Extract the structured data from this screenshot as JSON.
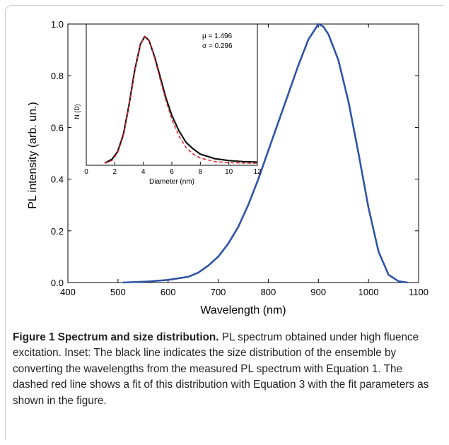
{
  "chart_data": [
    {
      "type": "line",
      "xlabel": "Wavelength (nm)",
      "ylabel": "PL intensity (arb. un.)",
      "xlim": [
        400,
        1100
      ],
      "ylim": [
        0,
        1.0
      ],
      "xticks": [
        "400",
        "500",
        "600",
        "700",
        "800",
        "900",
        "1000",
        "1100"
      ],
      "yticks": [
        "0.0",
        "0.2",
        "0.4",
        "0.6",
        "0.8",
        "1.0"
      ],
      "series": [
        {
          "color": "#2e54a6",
          "x": [
            510,
            560,
            600,
            640,
            660,
            680,
            700,
            720,
            740,
            760,
            780,
            800,
            820,
            840,
            860,
            880,
            900,
            910,
            920,
            940,
            960,
            980,
            1000,
            1020,
            1040,
            1060,
            1078
          ],
          "y": [
            0.0,
            0.004,
            0.01,
            0.022,
            0.038,
            0.065,
            0.1,
            0.15,
            0.215,
            0.3,
            0.4,
            0.51,
            0.62,
            0.73,
            0.84,
            0.94,
            1.0,
            0.99,
            0.96,
            0.86,
            0.7,
            0.5,
            0.29,
            0.12,
            0.03,
            0.005,
            0.0
          ]
        }
      ]
    },
    {
      "type": "line",
      "xlabel": "Diameter (nm)",
      "ylabel": "N (D)",
      "xlim": [
        0,
        12
      ],
      "xticks": [
        "0",
        "2",
        "4",
        "6",
        "8",
        "10",
        "12"
      ],
      "annotations": [
        "μ = 1.496",
        "σ = 0.296"
      ],
      "series": [
        {
          "color": "#111111",
          "style": "solid",
          "x": [
            1.3,
            1.8,
            2.2,
            2.6,
            3.0,
            3.4,
            3.8,
            4.1,
            4.4,
            4.8,
            5.2,
            5.6,
            6.0,
            6.5,
            7.0,
            7.5,
            8.0,
            9.0,
            10.0,
            11.0,
            12.0
          ],
          "y": [
            0.0,
            0.03,
            0.09,
            0.22,
            0.45,
            0.72,
            0.92,
            0.98,
            0.95,
            0.82,
            0.66,
            0.5,
            0.37,
            0.25,
            0.16,
            0.11,
            0.07,
            0.035,
            0.02,
            0.012,
            0.008
          ]
        },
        {
          "color": "#e0252b",
          "style": "dashed",
          "x": [
            1.3,
            1.8,
            2.2,
            2.6,
            3.0,
            3.4,
            3.8,
            4.1,
            4.4,
            4.8,
            5.2,
            5.6,
            6.0,
            6.5,
            7.0,
            7.5,
            8.0,
            9.0,
            10.0,
            11.0,
            12.0
          ],
          "y": [
            0.0,
            0.02,
            0.08,
            0.21,
            0.44,
            0.71,
            0.92,
            0.98,
            0.95,
            0.81,
            0.64,
            0.48,
            0.34,
            0.21,
            0.12,
            0.07,
            0.04,
            0.012,
            0.004,
            0.001,
            0.0
          ]
        }
      ]
    }
  ],
  "caption": {
    "bold": "Figure 1 Spectrum and size distribution.",
    "text": " PL spectrum obtained under high fluence excitation. Inset: The black line indicates the size distribution of the ensemble by converting the wavelengths from the measured PL spectrum with Equation  1. The dashed red line shows a fit of this distribution with Equation 3 with the fit parameters as shown in the figure."
  }
}
